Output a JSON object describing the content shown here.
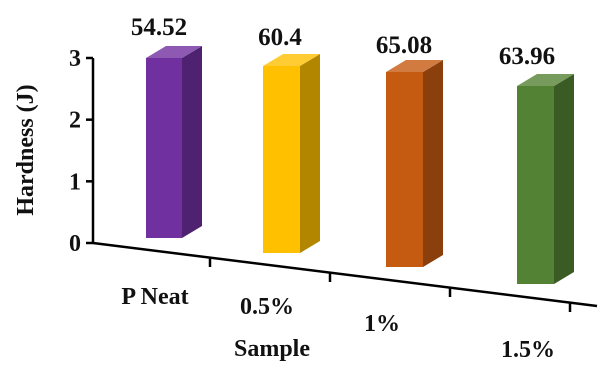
{
  "chart_data": {
    "type": "bar",
    "title": "",
    "xlabel": "Sample",
    "ylabel": "Hardness (J)",
    "categories": [
      "P Neat",
      "0.5%",
      "1%",
      "1.5%"
    ],
    "data_labels": [
      "54.52",
      "60.4",
      "65.08",
      "63.96"
    ],
    "values": [
      54.52,
      60.4,
      65.08,
      63.96
    ],
    "y_ticks": [
      "0",
      "1",
      "2",
      "3"
    ],
    "ylim": [
      0,
      3
    ],
    "grid": false,
    "legend": "none",
    "bar_style": "3d",
    "bar_colors": [
      "#7030a0",
      "#ffc000",
      "#c55a11",
      "#548235"
    ]
  }
}
